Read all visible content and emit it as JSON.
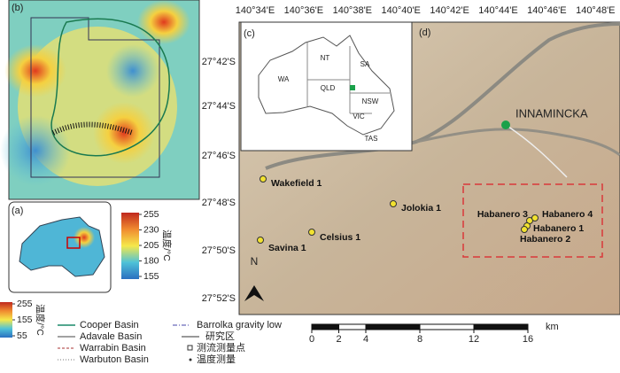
{
  "panels": {
    "a": "(a)",
    "b": "(b)",
    "c": "(c)",
    "d": "(d)"
  },
  "map_d": {
    "lon_labels": [
      "140°34'E",
      "140°36'E",
      "140°38'E",
      "140°40'E",
      "140°42'E",
      "140°44'E",
      "140°46'E",
      "140°48'E"
    ],
    "lat_labels": [
      "27°42'S",
      "27°44'S",
      "27°46'S",
      "27°48'S",
      "27°50'S",
      "27°52'S"
    ],
    "town": "INNAMINCKA",
    "wells": [
      "Wakefield 1",
      "Jolokia 1",
      "Celsius 1",
      "Savina 1",
      "Habanero 3",
      "Habanero 4",
      "Habanero 1",
      "Habanero 2"
    ],
    "north": "N",
    "scale": {
      "ticks": [
        0,
        2,
        4,
        8,
        12,
        16
      ],
      "unit": "km"
    }
  },
  "inset_c": {
    "states": [
      "WA",
      "NT",
      "SA",
      "QLD",
      "NSW",
      "VIC",
      "TAS"
    ]
  },
  "colorbar_a": {
    "ticks": [
      255,
      230,
      205,
      180,
      155
    ],
    "label": "温度/°C"
  },
  "colorbar_main": {
    "ticks": [
      255,
      155,
      55
    ],
    "label": "温度/°C"
  },
  "legend": [
    "Cooper Basin",
    "Adavale Basin",
    "Warrabin Basin",
    "Warbuton Basin",
    "Barrolka gravity low",
    "研究区",
    "测流测量点",
    "温度测量"
  ]
}
